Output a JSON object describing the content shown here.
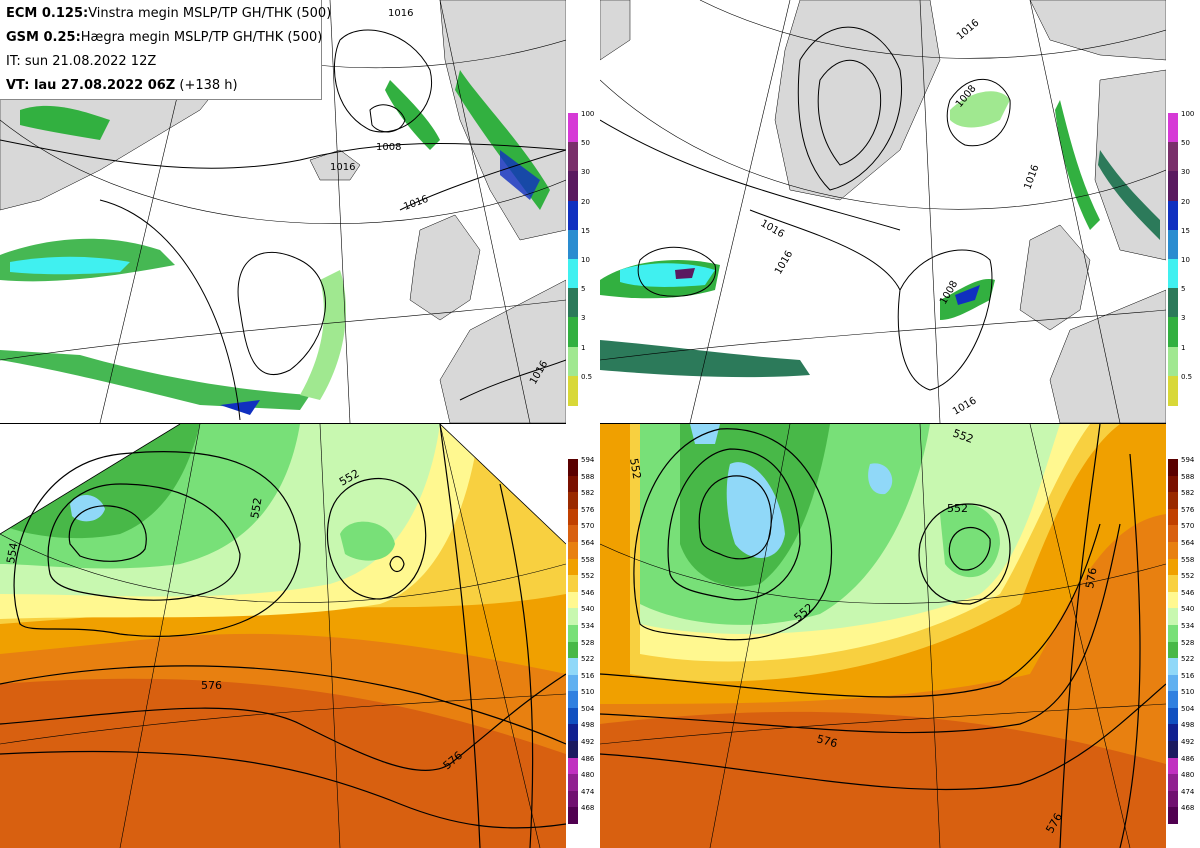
{
  "header": {
    "line1_model": "ECM 0.125:",
    "line1_text": "Vinstra megin MSLP/TP GH/THK (500)",
    "line2_model": "GSM 0.25:",
    "line2_text": "Hægra megin MSLP/TP GH/THK (500)",
    "line3": "IT: sun 21.08.2022 12Z",
    "line4_label": "VT: lau 27.08.2022 06Z",
    "line4_extra": "(+138 h)"
  },
  "precip_scale": {
    "labels": [
      "100",
      "50",
      "30",
      "20",
      "15",
      "10",
      "5",
      "3",
      "1",
      "0.5"
    ],
    "colors": [
      "#d63ad6",
      "#7a2f6b",
      "#5a1a60",
      "#1030c0",
      "#2a8cd0",
      "#40f0f0",
      "#2c7a5a",
      "#32b040",
      "#a0e890",
      "#d8d838"
    ]
  },
  "thickness_scale": {
    "labels": [
      "594",
      "588",
      "582",
      "576",
      "570",
      "564",
      "558",
      "552",
      "546",
      "540",
      "534",
      "528",
      "522",
      "516",
      "510",
      "504",
      "498",
      "492",
      "486",
      "480",
      "474",
      "468"
    ],
    "colors": [
      "#5a0000",
      "#7a1000",
      "#9a2a00",
      "#c04000",
      "#d86010",
      "#e88010",
      "#f0a000",
      "#f8d040",
      "#fff890",
      "#c8f8b0",
      "#78e078",
      "#48b848",
      "#90d8f8",
      "#60b0f0",
      "#3080e0",
      "#1050c0",
      "#102090",
      "#1a1a60",
      "#c030c0",
      "#902090",
      "#701070",
      "#500050"
    ]
  },
  "map_labels": {
    "ecm_mslp": [
      "1016",
      "1008",
      "1016",
      "1016",
      "1016"
    ],
    "gsm_mslp": [
      "1016",
      "1008",
      "1016",
      "1016",
      "1008",
      "1016",
      "1016"
    ],
    "ecm_gh": [
      "552",
      "552",
      "576",
      "576",
      "554"
    ],
    "gsm_gh": [
      "552",
      "552",
      "552",
      "576",
      "576",
      "576"
    ]
  }
}
